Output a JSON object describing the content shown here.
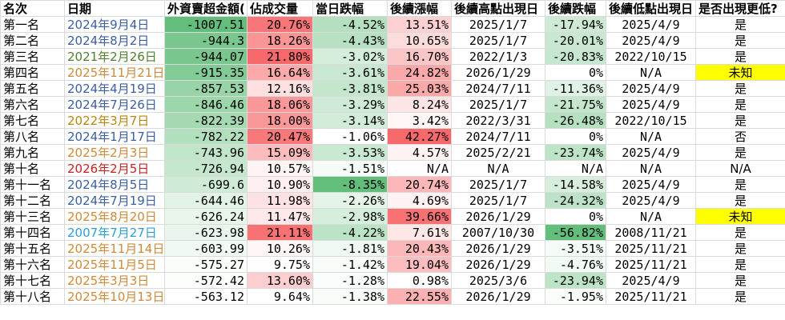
{
  "headers": [
    "名次",
    "日期",
    "外資賣超金額(",
    "佔成交量",
    "當日跌幅",
    "後續漲幅",
    "後續高點出現日",
    "後續跌幅",
    "後續低點出現日",
    "是否出現更低?"
  ],
  "date_colors": [
    "#3b5ea7",
    "#3b5ea7",
    "#4f7f2f",
    "#d08a3a",
    "#3b5ea7",
    "#3b5ea7",
    "#b8860b",
    "#3b5ea7",
    "#d08a3a",
    "#d02020",
    "#3b5ea7",
    "#3b5ea7",
    "#d08a3a",
    "#2a9fd6",
    "#d08a3a",
    "#d08a3a",
    "#d08a3a",
    "#d08a3a"
  ],
  "highlight_color": "#ffff00",
  "rows": [
    {
      "rank": "第一名",
      "date": "2024年9月4日",
      "amount": "-1007.51",
      "ratio": "20.76%",
      "drop": "-4.52%",
      "rise": "13.51%",
      "high_date": "2025/1/7",
      "fall": "-17.94%",
      "low_date": "2025/4/9",
      "lower": "是"
    },
    {
      "rank": "第二名",
      "date": "2024年8月2日",
      "amount": "-944.3",
      "ratio": "18.26%",
      "drop": "-4.43%",
      "rise": "10.65%",
      "high_date": "2025/1/7",
      "fall": "-20.01%",
      "low_date": "2025/4/9",
      "lower": "是"
    },
    {
      "rank": "第三名",
      "date": "2021年2月26日",
      "amount": "-944.07",
      "ratio": "21.80%",
      "drop": "-3.02%",
      "rise": "16.70%",
      "high_date": "2022/1/3",
      "fall": "-20.83%",
      "low_date": "2022/10/15",
      "lower": "是"
    },
    {
      "rank": "第四名",
      "date": "2025年11月21日",
      "amount": "-915.35",
      "ratio": "16.64%",
      "drop": "-3.61%",
      "rise": "24.82%",
      "high_date": "2026/1/29",
      "fall": "0%",
      "low_date": "N/A",
      "lower": "未知"
    },
    {
      "rank": "第五名",
      "date": "2024年4月19日",
      "amount": "-857.53",
      "ratio": "12.16%",
      "drop": "-3.81%",
      "rise": "25.03%",
      "high_date": "2024/7/11",
      "fall": "-11.36%",
      "low_date": "2025/4/9",
      "lower": "是"
    },
    {
      "rank": "第六名",
      "date": "2024年7月26日",
      "amount": "-846.46",
      "ratio": "18.06%",
      "drop": "-3.29%",
      "rise": "8.24%",
      "high_date": "2025/1/7",
      "fall": "-21.75%",
      "low_date": "2025/4/9",
      "lower": "是"
    },
    {
      "rank": "第七名",
      "date": "2022年3月7日",
      "amount": "-822.39",
      "ratio": "18.00%",
      "drop": "-3.14%",
      "rise": "3.42%",
      "high_date": "2022/3/31",
      "fall": "-26.48%",
      "low_date": "2022/10/15",
      "lower": "是"
    },
    {
      "rank": "第八名",
      "date": "2024年1月17日",
      "amount": "-782.22",
      "ratio": "20.47%",
      "drop": "-1.06%",
      "rise": "42.27%",
      "high_date": "2024/7/11",
      "fall": "0%",
      "low_date": "N/A",
      "lower": "否"
    },
    {
      "rank": "第九名",
      "date": "2025年2月3日",
      "amount": "-743.96",
      "ratio": "15.09%",
      "drop": "-3.53%",
      "rise": "4.57%",
      "high_date": "2025/2/21",
      "fall": "-23.74%",
      "low_date": "2025/4/9",
      "lower": "是"
    },
    {
      "rank": "第十名",
      "date": "2026年2月5日",
      "amount": "-726.94",
      "ratio": "10.57%",
      "drop": "-1.51%",
      "rise": "N/A",
      "high_date": "N/A",
      "fall": "N/A",
      "low_date": "N/A",
      "lower": "N/A"
    },
    {
      "rank": "第十一名",
      "date": "2024年8月5日",
      "amount": "-699.6",
      "ratio": "10.90%",
      "drop": "-8.35%",
      "rise": "20.74%",
      "high_date": "2025/1/7",
      "fall": "-14.58%",
      "low_date": "2025/4/9",
      "lower": "是"
    },
    {
      "rank": "第十二名",
      "date": "2024年7月19日",
      "amount": "-644.46",
      "ratio": "11.98%",
      "drop": "-2.26%",
      "rise": "4.69%",
      "high_date": "2025/1/7",
      "fall": "-24.32%",
      "low_date": "2025/4/9",
      "lower": "是"
    },
    {
      "rank": "第十三名",
      "date": "2025年8月20日",
      "amount": "-626.24",
      "ratio": "11.47%",
      "drop": "-2.98%",
      "rise": "39.66%",
      "high_date": "2026/1/29",
      "fall": "0%",
      "low_date": "N/A",
      "lower": "未知"
    },
    {
      "rank": "第十四名",
      "date": "2007年7月27日",
      "amount": "-623.98",
      "ratio": "21.11%",
      "drop": "-4.22%",
      "rise": "7.61%",
      "high_date": "2007/10/30",
      "fall": "-56.82%",
      "low_date": "2008/11/21",
      "lower": "是"
    },
    {
      "rank": "第十五名",
      "date": "2025年11月14日",
      "amount": "-603.99",
      "ratio": "10.26%",
      "drop": "-1.81%",
      "rise": "20.43%",
      "high_date": "2026/1/29",
      "fall": "-3.51%",
      "low_date": "2025/11/21",
      "lower": "是"
    },
    {
      "rank": "第十六名",
      "date": "2025年11月5日",
      "amount": "-575.27",
      "ratio": "9.75%",
      "drop": "-1.42%",
      "rise": "19.04%",
      "high_date": "2026/1/29",
      "fall": "-4.76%",
      "low_date": "2025/11/21",
      "lower": "是"
    },
    {
      "rank": "第十七名",
      "date": "2025年3月3日",
      "amount": "-572.42",
      "ratio": "13.60%",
      "drop": "-1.28%",
      "rise": "0.98%",
      "high_date": "2025/3/6",
      "fall": "-23.94%",
      "low_date": "2025/4/9",
      "lower": "是"
    },
    {
      "rank": "第十八名",
      "date": "2025年10月13日",
      "amount": "-563.12",
      "ratio": "9.64%",
      "drop": "-1.38%",
      "rise": "22.55%",
      "high_date": "2026/1/29",
      "fall": "-1.95%",
      "low_date": "2025/11/21",
      "lower": "是"
    }
  ]
}
